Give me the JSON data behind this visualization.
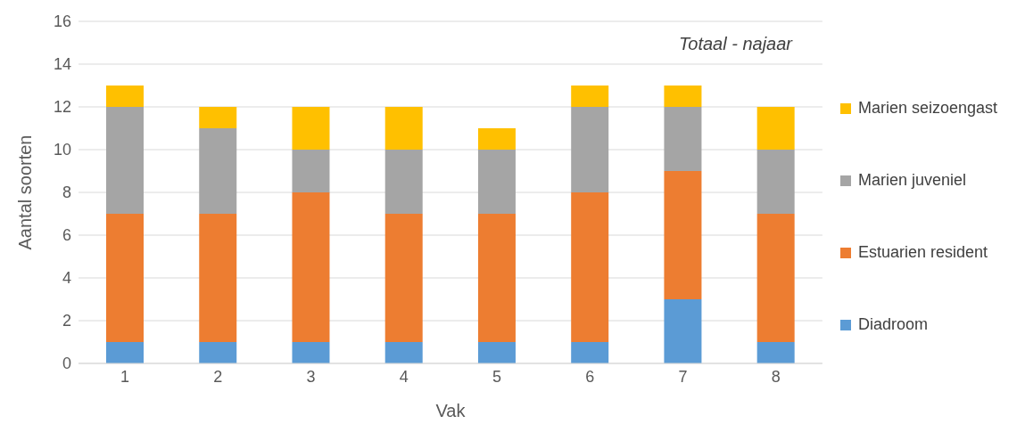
{
  "chart_data": {
    "type": "bar",
    "stacked": true,
    "xlabel": "Vak",
    "ylabel": "Aantal soorten",
    "annotations": [
      "Totaal - najaar"
    ],
    "categories": [
      "1",
      "2",
      "3",
      "4",
      "5",
      "6",
      "7",
      "8"
    ],
    "series": [
      {
        "name": "Diadroom",
        "color": "#5b9bd5",
        "values": [
          1,
          1,
          1,
          1,
          1,
          1,
          3,
          1
        ]
      },
      {
        "name": "Estuarien resident",
        "color": "#ed7d31",
        "values": [
          6,
          6,
          7,
          6,
          6,
          7,
          6,
          6
        ]
      },
      {
        "name": "Marien juveniel",
        "color": "#a5a5a5",
        "values": [
          5,
          4,
          2,
          3,
          3,
          4,
          3,
          3
        ]
      },
      {
        "name": "Marien seizoengast",
        "color": "#ffc000",
        "values": [
          1,
          1,
          2,
          2,
          1,
          1,
          1,
          2
        ]
      }
    ],
    "ylim": [
      0,
      16
    ],
    "yticks": [
      0,
      2,
      4,
      6,
      8,
      10,
      12,
      14,
      16
    ],
    "grid": "y",
    "legend": "right"
  }
}
